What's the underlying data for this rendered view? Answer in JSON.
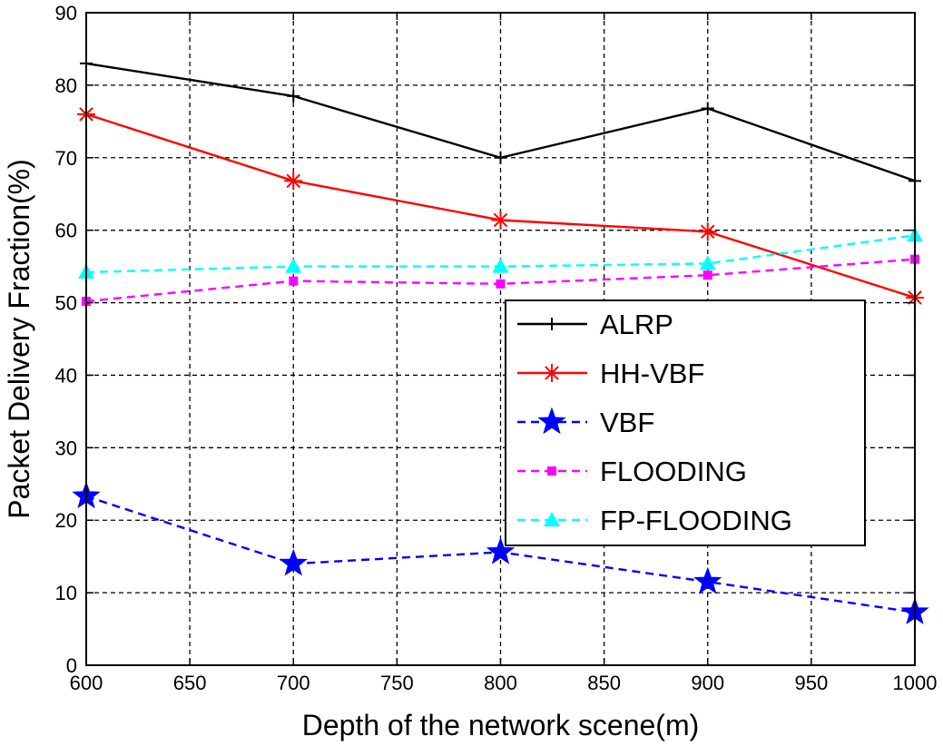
{
  "chart_data": {
    "type": "line",
    "title": "",
    "xlabel": "Depth of the network scene(m)",
    "ylabel": "Packet Delivery Fraction(%)",
    "xlim": [
      600,
      1000
    ],
    "ylim": [
      0,
      90
    ],
    "xticks": [
      600,
      650,
      700,
      750,
      800,
      850,
      900,
      950,
      1000
    ],
    "yticks": [
      0,
      10,
      20,
      30,
      40,
      50,
      60,
      70,
      80,
      90
    ],
    "grid": true,
    "legend_position": "center-right",
    "x": [
      600,
      700,
      800,
      900,
      1000
    ],
    "series": [
      {
        "name": "ALRP",
        "values": [
          83,
          78.5,
          70,
          76.8,
          66.8
        ],
        "color": "#000000",
        "dash": "solid",
        "marker": "plus"
      },
      {
        "name": "HH-VBF",
        "values": [
          76,
          66.8,
          61.4,
          59.8,
          50.7
        ],
        "color": "#ff0000",
        "dash": "solid",
        "marker": "asterisk"
      },
      {
        "name": "VBF",
        "values": [
          23.3,
          14,
          15.6,
          11.5,
          7.3
        ],
        "color": "#0000ff",
        "dash": "dashed",
        "marker": "pentagram"
      },
      {
        "name": "FLOODING",
        "values": [
          50.2,
          53,
          52.6,
          53.8,
          56
        ],
        "color": "#ff00ff",
        "dash": "dashed",
        "marker": "square"
      },
      {
        "name": "FP-FLOODING",
        "values": [
          54.2,
          55,
          55,
          55.4,
          59.3
        ],
        "color": "#00ffff",
        "dash": "dashed",
        "marker": "triangle"
      }
    ]
  }
}
